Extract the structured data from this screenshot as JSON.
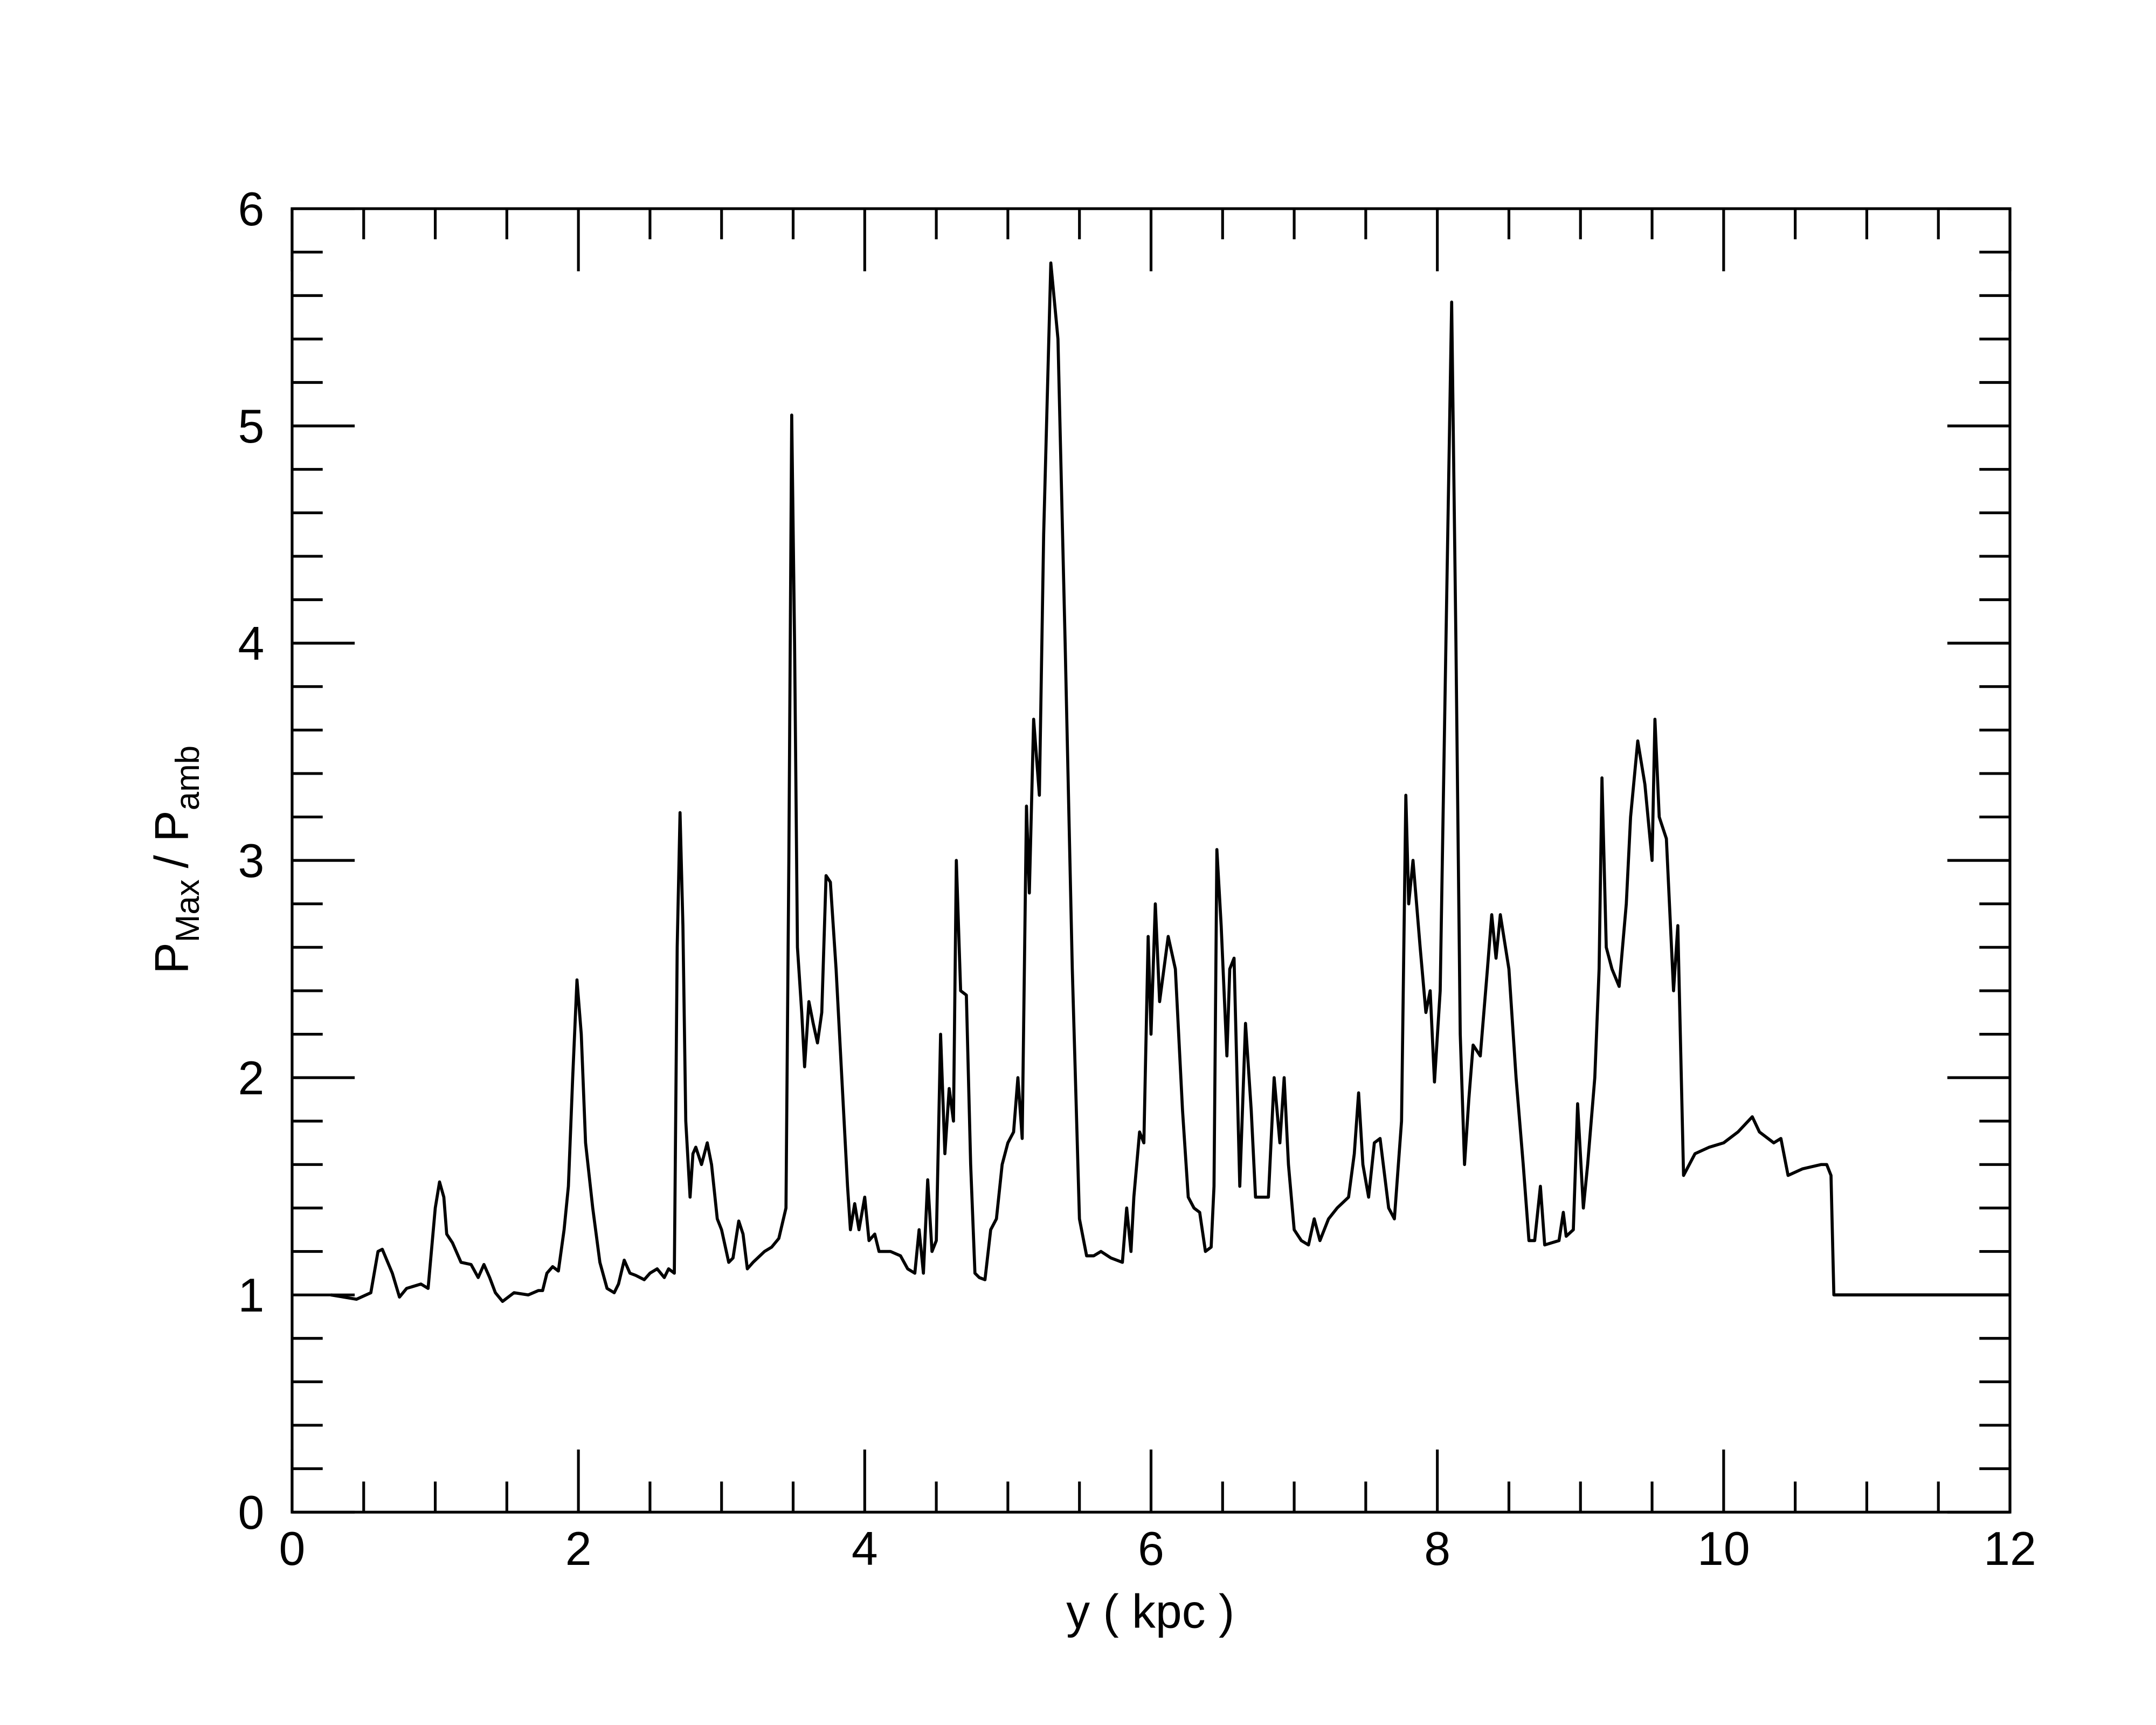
{
  "chart_data": {
    "type": "line",
    "xlabel": "y ( kpc )",
    "ylabel": [
      "P",
      "Max",
      "/ P",
      "amb"
    ],
    "xlim": [
      0,
      12
    ],
    "ylim": [
      0,
      6
    ],
    "xticks": [
      0,
      2,
      4,
      6,
      8,
      10,
      12
    ],
    "yticks": [
      0,
      1,
      2,
      3,
      4,
      5,
      6
    ],
    "xminorticks": [
      0.5,
      1,
      1.5,
      2.5,
      3,
      3.5,
      4.5,
      5,
      5.5,
      6.5,
      7,
      7.5,
      8.5,
      9,
      9.5,
      10.5,
      11,
      11.5
    ],
    "yminorticks": [
      0.2,
      0.4,
      0.6,
      0.8,
      1.2,
      1.4,
      1.6,
      1.8,
      2.2,
      2.4,
      2.6,
      2.8,
      3.2,
      3.4,
      3.6,
      3.8,
      4.2,
      4.4,
      4.6,
      4.8,
      5.2,
      5.4,
      5.6,
      5.8
    ],
    "color": "#000000",
    "x": [
      0.27,
      0.45,
      0.55,
      0.6,
      0.63,
      0.7,
      0.75,
      0.8,
      0.9,
      0.95,
      1.0,
      1.03,
      1.06,
      1.08,
      1.12,
      1.18,
      1.25,
      1.3,
      1.34,
      1.38,
      1.42,
      1.47,
      1.55,
      1.65,
      1.72,
      1.75,
      1.78,
      1.82,
      1.86,
      1.9,
      1.93,
      1.96,
      1.99,
      2.02,
      2.05,
      2.1,
      2.15,
      2.2,
      2.25,
      2.28,
      2.32,
      2.36,
      2.4,
      2.46,
      2.5,
      2.55,
      2.6,
      2.63,
      2.67,
      2.69,
      2.71,
      2.73,
      2.75,
      2.78,
      2.8,
      2.82,
      2.86,
      2.9,
      2.93,
      2.97,
      3.0,
      3.05,
      3.08,
      3.12,
      3.15,
      3.18,
      3.22,
      3.3,
      3.35,
      3.4,
      3.45,
      3.47,
      3.49,
      3.51,
      3.53,
      3.56,
      3.58,
      3.61,
      3.64,
      3.67,
      3.7,
      3.73,
      3.76,
      3.8,
      3.84,
      3.88,
      3.9,
      3.93,
      3.96,
      4.0,
      4.03,
      4.07,
      4.1,
      4.18,
      4.25,
      4.3,
      4.35,
      4.38,
      4.41,
      4.44,
      4.47,
      4.5,
      4.53,
      4.56,
      4.59,
      4.62,
      4.64,
      4.67,
      4.71,
      4.74,
      4.77,
      4.8,
      4.84,
      4.88,
      4.92,
      4.96,
      5.0,
      5.04,
      5.07,
      5.1,
      5.13,
      5.15,
      5.18,
      5.22,
      5.25,
      5.3,
      5.35,
      5.4,
      5.45,
      5.5,
      5.55,
      5.6,
      5.65,
      5.72,
      5.8,
      5.83,
      5.86,
      5.88,
      5.92,
      5.95,
      5.98,
      6.0,
      6.03,
      6.06,
      6.12,
      6.17,
      6.22,
      6.26,
      6.3,
      6.34,
      6.38,
      6.42,
      6.44,
      6.46,
      6.49,
      6.53,
      6.55,
      6.58,
      6.62,
      6.66,
      6.7,
      6.73,
      6.78,
      6.82,
      6.86,
      6.9,
      6.93,
      6.96,
      7.0,
      7.05,
      7.1,
      7.14,
      7.18,
      7.24,
      7.3,
      7.38,
      7.42,
      7.45,
      7.48,
      7.52,
      7.56,
      7.6,
      7.66,
      7.7,
      7.75,
      7.78,
      7.8,
      7.83,
      7.88,
      7.92,
      7.95,
      7.98,
      8.02,
      8.06,
      8.1,
      8.13,
      8.16,
      8.19,
      8.22,
      8.25,
      8.3,
      8.35,
      8.38,
      8.41,
      8.44,
      8.5,
      8.55,
      8.6,
      8.64,
      8.68,
      8.72,
      8.75,
      8.85,
      8.88,
      8.9,
      8.95,
      8.98,
      9.02,
      9.05,
      9.1,
      9.13,
      9.15,
      9.18,
      9.22,
      9.27,
      9.32,
      9.35,
      9.4,
      9.45,
      9.5,
      9.52,
      9.55,
      9.6,
      9.65,
      9.68,
      9.72,
      9.8,
      9.9,
      10.0,
      10.1,
      10.2,
      10.25,
      10.35,
      10.4,
      10.45,
      10.55,
      10.68,
      10.72,
      10.75,
      10.77,
      12.0
    ],
    "values": [
      1.0,
      0.98,
      1.01,
      1.2,
      1.21,
      1.1,
      0.99,
      1.03,
      1.05,
      1.03,
      1.4,
      1.52,
      1.45,
      1.28,
      1.24,
      1.15,
      1.14,
      1.08,
      1.14,
      1.08,
      1.01,
      0.97,
      1.01,
      1.0,
      1.02,
      1.02,
      1.1,
      1.13,
      1.11,
      1.3,
      1.5,
      2.0,
      2.45,
      2.2,
      1.7,
      1.4,
      1.15,
      1.03,
      1.01,
      1.05,
      1.16,
      1.1,
      1.09,
      1.07,
      1.1,
      1.12,
      1.08,
      1.12,
      1.1,
      2.6,
      3.22,
      2.7,
      1.8,
      1.45,
      1.65,
      1.68,
      1.6,
      1.7,
      1.6,
      1.35,
      1.3,
      1.15,
      1.17,
      1.34,
      1.28,
      1.12,
      1.15,
      1.2,
      1.22,
      1.26,
      1.4,
      3.0,
      5.05,
      4.0,
      2.6,
      2.3,
      2.05,
      2.35,
      2.25,
      2.16,
      2.3,
      2.93,
      2.9,
      2.5,
      2.0,
      1.5,
      1.3,
      1.42,
      1.3,
      1.45,
      1.25,
      1.28,
      1.2,
      1.2,
      1.18,
      1.12,
      1.1,
      1.3,
      1.1,
      1.53,
      1.2,
      1.25,
      2.2,
      1.65,
      1.95,
      1.8,
      3.0,
      2.4,
      2.38,
      1.6,
      1.1,
      1.08,
      1.07,
      1.3,
      1.35,
      1.6,
      1.7,
      1.75,
      2.0,
      1.72,
      3.25,
      2.85,
      3.65,
      3.3,
      4.5,
      5.75,
      5.4,
      4.0,
      2.5,
      1.35,
      1.18,
      1.18,
      1.2,
      1.17,
      1.15,
      1.4,
      1.2,
      1.45,
      1.75,
      1.7,
      2.65,
      2.2,
      2.8,
      2.35,
      2.65,
      2.5,
      1.85,
      1.45,
      1.4,
      1.38,
      1.2,
      1.22,
      1.5,
      3.05,
      2.7,
      2.1,
      2.5,
      2.55,
      1.5,
      2.25,
      1.85,
      1.45,
      1.45,
      1.45,
      2.0,
      1.7,
      2.0,
      1.6,
      1.3,
      1.25,
      1.23,
      1.35,
      1.25,
      1.35,
      1.4,
      1.45,
      1.65,
      1.93,
      1.6,
      1.45,
      1.7,
      1.72,
      1.4,
      1.35,
      1.8,
      3.3,
      2.8,
      3.0,
      2.6,
      2.3,
      2.4,
      1.98,
      2.4,
      4.0,
      5.57,
      4.0,
      2.2,
      1.6,
      1.9,
      2.15,
      2.1,
      2.5,
      2.75,
      2.55,
      2.75,
      2.5,
      2.0,
      1.6,
      1.25,
      1.25,
      1.5,
      1.23,
      1.25,
      1.38,
      1.27,
      1.3,
      1.88,
      1.4,
      1.6,
      2.0,
      2.5,
      3.38,
      2.6,
      2.5,
      2.42,
      2.8,
      3.2,
      3.55,
      3.35,
      3.0,
      3.65,
      3.2,
      3.1,
      2.4,
      2.7,
      1.55,
      1.65,
      1.68,
      1.7,
      1.75,
      1.82,
      1.75,
      1.7,
      1.72,
      1.55,
      1.58,
      1.6,
      1.6,
      1.55,
      1.0,
      1.0
    ]
  }
}
